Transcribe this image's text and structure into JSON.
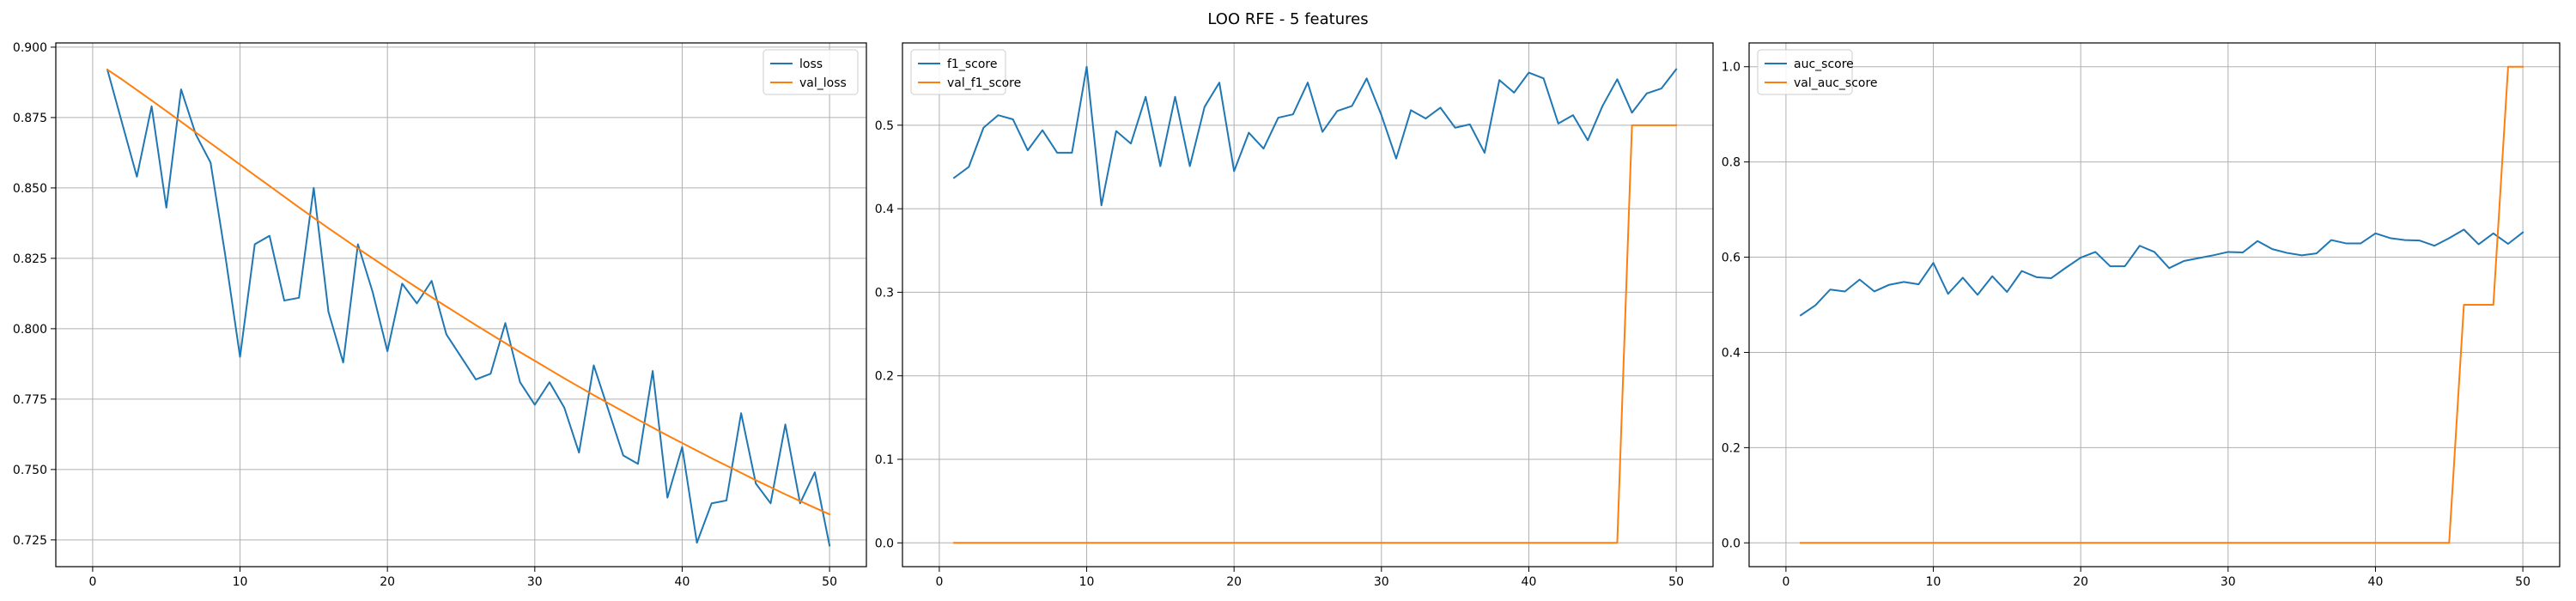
{
  "figure": {
    "suptitle": "LOO RFE - 5 features"
  },
  "chart_data": [
    {
      "type": "line",
      "title": "",
      "xlabel": "",
      "ylabel": "",
      "xlim": [
        -2.5,
        52.5
      ],
      "ylim": [
        0.7155,
        0.9015
      ],
      "xticks": [
        0,
        10,
        20,
        30,
        40,
        50
      ],
      "yticks": [
        0.725,
        0.75,
        0.775,
        0.8,
        0.825,
        0.85,
        0.875,
        0.9
      ],
      "ytick_format": 3,
      "grid": true,
      "legend_position": "upper right",
      "x": [
        1,
        2,
        3,
        4,
        5,
        6,
        7,
        8,
        9,
        10,
        11,
        12,
        13,
        14,
        15,
        16,
        17,
        18,
        19,
        20,
        21,
        22,
        23,
        24,
        25,
        26,
        27,
        28,
        29,
        30,
        31,
        32,
        33,
        34,
        35,
        36,
        37,
        38,
        39,
        40,
        41,
        42,
        43,
        44,
        45,
        46,
        47,
        48,
        49,
        50
      ],
      "series": [
        {
          "name": "loss",
          "color": "#1f77b4",
          "values": [
            0.892,
            0.873,
            0.854,
            0.879,
            0.843,
            0.885,
            0.869,
            0.859,
            0.826,
            0.79,
            0.83,
            0.833,
            0.81,
            0.811,
            0.85,
            0.806,
            0.788,
            0.83,
            0.813,
            0.792,
            0.816,
            0.809,
            0.817,
            0.798,
            0.79,
            0.782,
            0.784,
            0.802,
            0.781,
            0.773,
            0.781,
            0.772,
            0.756,
            0.787,
            0.771,
            0.755,
            0.752,
            0.785,
            0.74,
            0.758,
            0.724,
            0.738,
            0.739,
            0.77,
            0.745,
            0.738,
            0.766,
            0.738,
            0.749,
            0.723
          ]
        },
        {
          "name": "val_loss",
          "color": "#ff7f0e",
          "values": [
            0.892,
            0.8885,
            0.8848,
            0.8811,
            0.8773,
            0.8735,
            0.8697,
            0.8659,
            0.8621,
            0.8583,
            0.8545,
            0.8507,
            0.8469,
            0.8431,
            0.8394,
            0.8357,
            0.8321,
            0.8285,
            0.825,
            0.8215,
            0.818,
            0.8146,
            0.8112,
            0.8079,
            0.8046,
            0.8013,
            0.7981,
            0.7949,
            0.7917,
            0.7886,
            0.7855,
            0.7824,
            0.7794,
            0.7764,
            0.7735,
            0.7706,
            0.7677,
            0.7649,
            0.7621,
            0.7594,
            0.7567,
            0.754,
            0.7514,
            0.7488,
            0.7462,
            0.7437,
            0.7412,
            0.7388,
            0.7364,
            0.7341
          ]
        }
      ]
    },
    {
      "type": "line",
      "title": "",
      "xlabel": "",
      "ylabel": "",
      "xlim": [
        -2.5,
        52.5
      ],
      "ylim": [
        -0.0285,
        0.5985
      ],
      "xticks": [
        0,
        10,
        20,
        30,
        40,
        50
      ],
      "yticks": [
        0.0,
        0.1,
        0.2,
        0.3,
        0.4,
        0.5
      ],
      "ytick_format": 1,
      "grid": true,
      "legend_position": "upper left",
      "x": [
        1,
        2,
        3,
        4,
        5,
        6,
        7,
        8,
        9,
        10,
        11,
        12,
        13,
        14,
        15,
        16,
        17,
        18,
        19,
        20,
        21,
        22,
        23,
        24,
        25,
        26,
        27,
        28,
        29,
        30,
        31,
        32,
        33,
        34,
        35,
        36,
        37,
        38,
        39,
        40,
        41,
        42,
        43,
        44,
        45,
        46,
        47,
        48,
        49,
        50
      ],
      "series": [
        {
          "name": "f1_score",
          "color": "#1f77b4",
          "values": [
            0.437,
            0.45,
            0.497,
            0.512,
            0.507,
            0.47,
            0.494,
            0.467,
            0.467,
            0.57,
            0.404,
            0.493,
            0.478,
            0.534,
            0.451,
            0.534,
            0.451,
            0.522,
            0.551,
            0.445,
            0.491,
            0.472,
            0.509,
            0.513,
            0.551,
            0.492,
            0.517,
            0.523,
            0.556,
            0.512,
            0.46,
            0.518,
            0.508,
            0.521,
            0.497,
            0.501,
            0.467,
            0.554,
            0.539,
            0.563,
            0.556,
            0.502,
            0.512,
            0.482,
            0.523,
            0.555,
            0.515,
            0.538,
            0.544,
            0.567
          ]
        },
        {
          "name": "val_f1_score",
          "color": "#ff7f0e",
          "values": [
            0,
            0,
            0,
            0,
            0,
            0,
            0,
            0,
            0,
            0,
            0,
            0,
            0,
            0,
            0,
            0,
            0,
            0,
            0,
            0,
            0,
            0,
            0,
            0,
            0,
            0,
            0,
            0,
            0,
            0,
            0,
            0,
            0,
            0,
            0,
            0,
            0,
            0,
            0,
            0,
            0,
            0,
            0,
            0,
            0,
            0,
            0.5,
            0.5,
            0.5,
            0.5
          ]
        }
      ]
    },
    {
      "type": "line",
      "title": "",
      "xlabel": "",
      "ylabel": "",
      "xlim": [
        -2.5,
        52.5
      ],
      "ylim": [
        -0.05,
        1.05
      ],
      "xticks": [
        0,
        10,
        20,
        30,
        40,
        50
      ],
      "yticks": [
        0.0,
        0.2,
        0.4,
        0.6,
        0.8,
        1.0
      ],
      "ytick_format": 1,
      "grid": true,
      "legend_position": "upper left",
      "x": [
        1,
        2,
        3,
        4,
        5,
        6,
        7,
        8,
        9,
        10,
        11,
        12,
        13,
        14,
        15,
        16,
        17,
        18,
        19,
        20,
        21,
        22,
        23,
        24,
        25,
        26,
        27,
        28,
        29,
        30,
        31,
        32,
        33,
        34,
        35,
        36,
        37,
        38,
        39,
        40,
        41,
        42,
        43,
        44,
        45,
        46,
        47,
        48,
        49,
        50
      ],
      "series": [
        {
          "name": "auc_score",
          "color": "#1f77b4",
          "values": [
            0.478,
            0.499,
            0.532,
            0.528,
            0.553,
            0.528,
            0.542,
            0.548,
            0.543,
            0.588,
            0.523,
            0.557,
            0.521,
            0.56,
            0.527,
            0.571,
            0.558,
            0.556,
            0.578,
            0.599,
            0.611,
            0.581,
            0.581,
            0.624,
            0.611,
            0.577,
            0.592,
            0.598,
            0.604,
            0.611,
            0.61,
            0.634,
            0.617,
            0.609,
            0.604,
            0.608,
            0.636,
            0.629,
            0.629,
            0.65,
            0.64,
            0.636,
            0.635,
            0.624,
            0.64,
            0.658,
            0.627,
            0.65,
            0.628,
            0.652
          ]
        },
        {
          "name": "val_auc_score",
          "color": "#ff7f0e",
          "values": [
            0,
            0,
            0,
            0,
            0,
            0,
            0,
            0,
            0,
            0,
            0,
            0,
            0,
            0,
            0,
            0,
            0,
            0,
            0,
            0,
            0,
            0,
            0,
            0,
            0,
            0,
            0,
            0,
            0,
            0,
            0,
            0,
            0,
            0,
            0,
            0,
            0,
            0,
            0,
            0,
            0,
            0,
            0,
            0,
            0,
            0.5,
            0.5,
            0.5,
            1.0,
            1.0
          ]
        }
      ]
    }
  ]
}
